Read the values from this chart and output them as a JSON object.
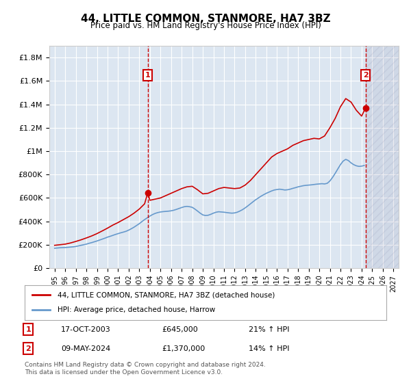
{
  "title": "44, LITTLE COMMON, STANMORE, HA7 3BZ",
  "subtitle": "Price paid vs. HM Land Registry's House Price Index (HPI)",
  "legend_line1": "44, LITTLE COMMON, STANMORE, HA7 3BZ (detached house)",
  "legend_line2": "HPI: Average price, detached house, Harrow",
  "annotation1_label": "1",
  "annotation1_date": "17-OCT-2003",
  "annotation1_price": "£645,000",
  "annotation1_hpi": "21% ↑ HPI",
  "annotation1_year": 2003.8,
  "annotation1_value": 645000,
  "annotation2_label": "2",
  "annotation2_date": "09-MAY-2024",
  "annotation2_price": "£1,370,000",
  "annotation2_hpi": "14% ↑ HPI",
  "annotation2_year": 2024.37,
  "annotation2_value": 1370000,
  "hpi_color": "#6699cc",
  "price_color": "#cc0000",
  "background_color": "#dce6f1",
  "plot_bg_color": "#dce6f1",
  "hatch_color": "#aaaacc",
  "footer": "Contains HM Land Registry data © Crown copyright and database right 2024.\nThis data is licensed under the Open Government Licence v3.0.",
  "ylim": [
    0,
    1900000
  ],
  "yticks": [
    0,
    200000,
    400000,
    600000,
    800000,
    1000000,
    1200000,
    1400000,
    1600000,
    1800000
  ],
  "xmin": 1994.5,
  "xmax": 2027.5,
  "xticks": [
    1995,
    1996,
    1997,
    1998,
    1999,
    2000,
    2001,
    2002,
    2003,
    2004,
    2005,
    2006,
    2007,
    2008,
    2009,
    2010,
    2011,
    2012,
    2013,
    2014,
    2015,
    2016,
    2017,
    2018,
    2019,
    2020,
    2021,
    2022,
    2023,
    2024,
    2025,
    2026,
    2027
  ],
  "hpi_x": [
    1995,
    1995.25,
    1995.5,
    1995.75,
    1996,
    1996.25,
    1996.5,
    1996.75,
    1997,
    1997.25,
    1997.5,
    1997.75,
    1998,
    1998.25,
    1998.5,
    1998.75,
    1999,
    1999.25,
    1999.5,
    1999.75,
    2000,
    2000.25,
    2000.5,
    2000.75,
    2001,
    2001.25,
    2001.5,
    2001.75,
    2002,
    2002.25,
    2002.5,
    2002.75,
    2003,
    2003.25,
    2003.5,
    2003.75,
    2004,
    2004.25,
    2004.5,
    2004.75,
    2005,
    2005.25,
    2005.5,
    2005.75,
    2006,
    2006.25,
    2006.5,
    2006.75,
    2007,
    2007.25,
    2007.5,
    2007.75,
    2008,
    2008.25,
    2008.5,
    2008.75,
    2009,
    2009.25,
    2009.5,
    2009.75,
    2010,
    2010.25,
    2010.5,
    2010.75,
    2011,
    2011.25,
    2011.5,
    2011.75,
    2012,
    2012.25,
    2012.5,
    2012.75,
    2013,
    2013.25,
    2013.5,
    2013.75,
    2014,
    2014.25,
    2014.5,
    2014.75,
    2015,
    2015.25,
    2015.5,
    2015.75,
    2016,
    2016.25,
    2016.5,
    2016.75,
    2017,
    2017.25,
    2017.5,
    2017.75,
    2018,
    2018.25,
    2018.5,
    2018.75,
    2019,
    2019.25,
    2019.5,
    2019.75,
    2020,
    2020.25,
    2020.5,
    2020.75,
    2021,
    2021.25,
    2021.5,
    2021.75,
    2022,
    2022.25,
    2022.5,
    2022.75,
    2023,
    2023.25,
    2023.5,
    2023.75,
    2024,
    2024.25
  ],
  "hpi_y": [
    170000,
    172000,
    174000,
    175000,
    176000,
    178000,
    180000,
    182000,
    185000,
    190000,
    195000,
    200000,
    205000,
    212000,
    218000,
    225000,
    232000,
    240000,
    248000,
    256000,
    265000,
    272000,
    280000,
    288000,
    295000,
    302000,
    308000,
    315000,
    325000,
    337000,
    350000,
    365000,
    380000,
    398000,
    415000,
    430000,
    445000,
    458000,
    468000,
    475000,
    480000,
    483000,
    485000,
    487000,
    490000,
    495000,
    502000,
    510000,
    518000,
    525000,
    528000,
    525000,
    520000,
    505000,
    488000,
    470000,
    455000,
    450000,
    452000,
    460000,
    470000,
    478000,
    482000,
    480000,
    478000,
    475000,
    472000,
    470000,
    472000,
    478000,
    488000,
    500000,
    515000,
    532000,
    550000,
    568000,
    585000,
    600000,
    615000,
    628000,
    640000,
    650000,
    660000,
    668000,
    672000,
    675000,
    672000,
    668000,
    670000,
    675000,
    682000,
    688000,
    695000,
    700000,
    705000,
    708000,
    710000,
    712000,
    715000,
    718000,
    720000,
    722000,
    720000,
    725000,
    745000,
    775000,
    810000,
    848000,
    885000,
    915000,
    930000,
    920000,
    900000,
    885000,
    875000,
    870000,
    872000,
    878000
  ],
  "price_x": [
    1995.0,
    1995.5,
    1996.0,
    1996.5,
    1997.0,
    1997.5,
    1998.0,
    1998.5,
    1999.0,
    1999.5,
    2000.0,
    2000.5,
    2001.0,
    2001.5,
    2002.0,
    2002.5,
    2003.0,
    2003.5,
    2003.8,
    2004.0,
    2004.5,
    2005.0,
    2005.5,
    2006.0,
    2006.5,
    2007.0,
    2007.5,
    2008.0,
    2008.5,
    2009.0,
    2009.5,
    2010.0,
    2010.5,
    2011.0,
    2011.5,
    2012.0,
    2012.5,
    2013.0,
    2013.5,
    2014.0,
    2014.5,
    2015.0,
    2015.5,
    2016.0,
    2016.5,
    2017.0,
    2017.5,
    2018.0,
    2018.5,
    2019.0,
    2019.5,
    2020.0,
    2020.5,
    2021.0,
    2021.5,
    2022.0,
    2022.5,
    2023.0,
    2023.5,
    2024.0,
    2024.37
  ],
  "price_y": [
    195000,
    200000,
    205000,
    215000,
    228000,
    242000,
    258000,
    275000,
    295000,
    318000,
    342000,
    368000,
    390000,
    415000,
    440000,
    470000,
    505000,
    550000,
    645000,
    580000,
    590000,
    600000,
    620000,
    640000,
    660000,
    680000,
    695000,
    700000,
    670000,
    635000,
    640000,
    660000,
    680000,
    690000,
    685000,
    680000,
    685000,
    710000,
    750000,
    800000,
    850000,
    900000,
    950000,
    980000,
    1000000,
    1020000,
    1050000,
    1070000,
    1090000,
    1100000,
    1110000,
    1105000,
    1130000,
    1200000,
    1280000,
    1380000,
    1450000,
    1420000,
    1350000,
    1300000,
    1370000
  ]
}
